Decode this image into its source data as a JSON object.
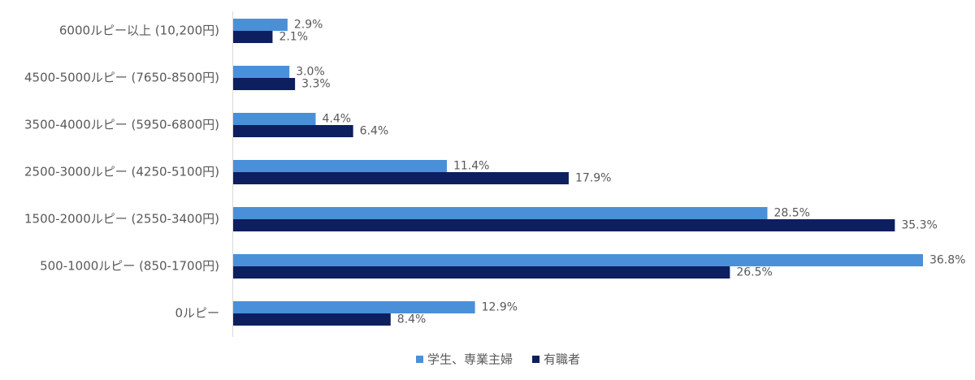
{
  "chart_data": {
    "type": "bar",
    "orientation": "horizontal",
    "categories": [
      "6000ルピー以上 (10,200円)",
      "4500-5000ルピー (7650-8500円)",
      "3500-4000ルピー (5950-6800円)",
      "2500-3000ルピー (4250-5100円)",
      "1500-2000ルピー (2550-3400円)",
      "500-1000ルピー (850-1700円)",
      "0ルピー"
    ],
    "series": [
      {
        "name": "学生、専業主婦",
        "color": "#4a90d9",
        "values": [
          2.9,
          3.0,
          4.4,
          11.4,
          28.5,
          36.8,
          12.9
        ],
        "value_labels": [
          "2.9%",
          "3.0%",
          "4.4%",
          "11.4%",
          "28.5%",
          "36.8%",
          "12.9%"
        ]
      },
      {
        "name": "有職者",
        "color": "#0d1f5e",
        "values": [
          2.1,
          3.3,
          6.4,
          17.9,
          35.3,
          26.5,
          8.4
        ],
        "value_labels": [
          "2.1%",
          "3.3%",
          "6.4%",
          "17.9%",
          "35.3%",
          "26.5%",
          "8.4%"
        ]
      }
    ],
    "legend": "bottom"
  }
}
